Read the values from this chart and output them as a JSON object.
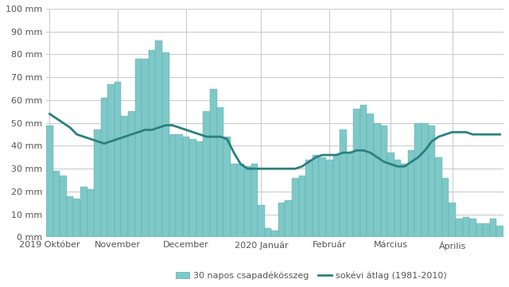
{
  "title": "",
  "bar_color": "#7fc8c8",
  "bar_edge_color": "#5aabab",
  "line_color": "#2a8080",
  "background_color": "#ffffff",
  "grid_color": "#cccccc",
  "text_color": "#555555",
  "ylim": [
    0,
    100
  ],
  "yticks": [
    0,
    10,
    20,
    30,
    40,
    50,
    60,
    70,
    80,
    90,
    100
  ],
  "ytick_labels": [
    "0 mm",
    "10 mm",
    "20 mm",
    "30 mm",
    "40 mm",
    "50 mm",
    "60 mm",
    "70 mm",
    "80 mm",
    "90 mm",
    "100 mm"
  ],
  "xtick_labels": [
    "2019 Október",
    "November",
    "December",
    "2020 Január",
    "Február",
    "Március",
    "Április"
  ],
  "legend_bar_label": "30 napos csapadékösszeg",
  "legend_line_label": "sokévi átlag (1981-2010)",
  "bar_values": [
    49,
    29,
    27,
    18,
    17,
    22,
    21,
    47,
    61,
    67,
    68,
    53,
    55,
    78,
    78,
    82,
    86,
    81,
    45,
    45,
    44,
    43,
    42,
    55,
    65,
    57,
    44,
    32,
    32,
    31,
    32,
    14,
    4,
    3,
    15,
    16,
    26,
    27,
    34,
    36,
    35,
    34,
    36,
    47,
    37,
    56,
    58,
    54,
    50,
    49,
    37,
    34,
    32,
    38,
    50,
    50,
    49,
    35,
    26,
    15,
    8,
    9,
    8,
    6,
    6,
    8,
    5
  ],
  "line_values": [
    54,
    52,
    50,
    48,
    45,
    44,
    43,
    42,
    41,
    42,
    43,
    44,
    45,
    46,
    47,
    47,
    48,
    49,
    49,
    48,
    47,
    46,
    45,
    44,
    44,
    44,
    43,
    37,
    32,
    30,
    30,
    30,
    30,
    30,
    30,
    30,
    30,
    31,
    33,
    35,
    36,
    36,
    36,
    37,
    37,
    38,
    38,
    37,
    35,
    33,
    32,
    31,
    31,
    33,
    35,
    38,
    42,
    44,
    45,
    46,
    46,
    46,
    45,
    45,
    45,
    45,
    45
  ]
}
